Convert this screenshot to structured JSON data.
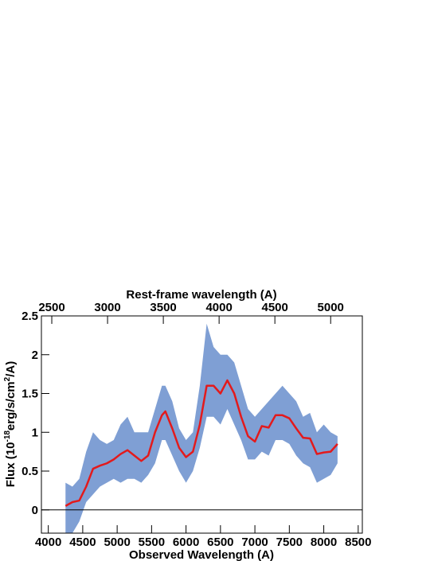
{
  "chart_data": {
    "type": "line",
    "xlabel": "Observed Wavelength (A)",
    "x2label": "Rest-frame wavelength (A)",
    "ylabel_parts": [
      "Flux (10",
      "-18",
      "erg/s/cm",
      "2",
      "/A)"
    ],
    "xlim": [
      3900,
      8560
    ],
    "xticks": [
      4000,
      4500,
      5000,
      5500,
      6000,
      6500,
      7000,
      7500,
      8000,
      8500
    ],
    "x2lim": [
      2407,
      5284
    ],
    "x2ticks": [
      2500,
      3000,
      3500,
      4000,
      4500,
      5000
    ],
    "ylim": [
      -0.3,
      2.5
    ],
    "yticks": [
      0,
      0.5,
      1,
      1.5,
      2,
      2.5
    ],
    "reference_line": 0,
    "x": [
      4250,
      4350,
      4450,
      4550,
      4650,
      4750,
      4850,
      4950,
      5050,
      5150,
      5250,
      5350,
      5450,
      5550,
      5650,
      5700,
      5800,
      5900,
      6000,
      6100,
      6200,
      6300,
      6400,
      6500,
      6600,
      6700,
      6800,
      6900,
      7000,
      7100,
      7200,
      7300,
      7400,
      7500,
      7600,
      7700,
      7800,
      7900,
      8000,
      8100,
      8200
    ],
    "band": {
      "color": "#7f9fd4",
      "upper": [
        0.35,
        0.3,
        0.4,
        0.75,
        1.0,
        0.9,
        0.85,
        0.9,
        1.1,
        1.2,
        1.0,
        1.0,
        1.0,
        1.3,
        1.6,
        1.6,
        1.4,
        1.05,
        0.9,
        1.0,
        1.6,
        2.4,
        2.1,
        2.0,
        2.0,
        1.9,
        1.6,
        1.3,
        1.2,
        1.3,
        1.4,
        1.5,
        1.6,
        1.5,
        1.4,
        1.2,
        1.25,
        1.0,
        1.1,
        1.0,
        0.95
      ],
      "lower": [
        -0.3,
        -0.3,
        -0.15,
        0.1,
        0.2,
        0.3,
        0.35,
        0.4,
        0.35,
        0.4,
        0.4,
        0.35,
        0.45,
        0.6,
        0.9,
        0.9,
        0.7,
        0.5,
        0.35,
        0.5,
        0.8,
        1.2,
        1.2,
        1.1,
        1.3,
        1.1,
        0.9,
        0.65,
        0.65,
        0.75,
        0.7,
        0.9,
        0.9,
        0.85,
        0.7,
        0.6,
        0.55,
        0.35,
        0.4,
        0.45,
        0.6
      ]
    },
    "series": [
      {
        "color": "#e31a1c",
        "values": [
          0.05,
          0.1,
          0.12,
          0.3,
          0.53,
          0.57,
          0.6,
          0.65,
          0.72,
          0.77,
          0.7,
          0.63,
          0.7,
          1.0,
          1.22,
          1.27,
          1.05,
          0.8,
          0.68,
          0.75,
          1.1,
          1.6,
          1.6,
          1.5,
          1.67,
          1.5,
          1.2,
          0.95,
          0.88,
          1.08,
          1.06,
          1.22,
          1.22,
          1.18,
          1.05,
          0.93,
          0.92,
          0.72,
          0.74,
          0.75,
          0.85
        ]
      }
    ]
  }
}
